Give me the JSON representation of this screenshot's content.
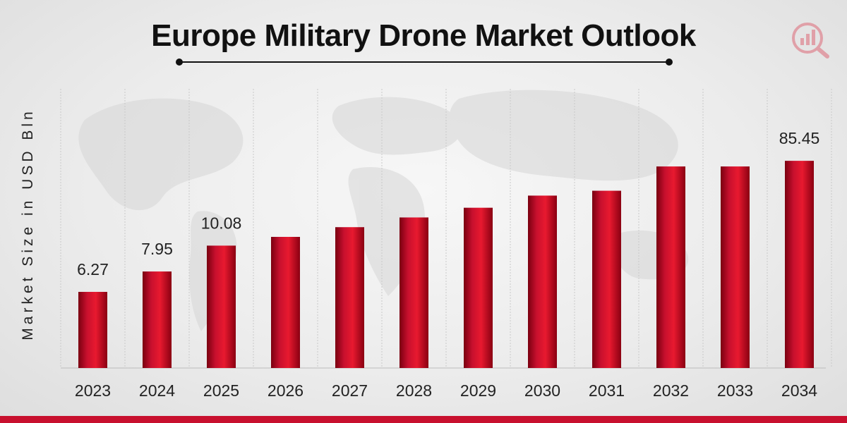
{
  "chart_data": {
    "type": "bar",
    "title": "Europe Military Drone Market Outlook",
    "ylabel": "Market Size in USD Bln",
    "xlabel": "",
    "categories": [
      "2023",
      "2024",
      "2025",
      "2026",
      "2027",
      "2028",
      "2029",
      "2030",
      "2031",
      "2032",
      "2033",
      "2034"
    ],
    "values": [
      6.27,
      7.95,
      10.08,
      10.8,
      11.6,
      12.4,
      13.2,
      14.2,
      14.6,
      16.6,
      16.6,
      85.45
    ],
    "data_labels": [
      "6.27",
      "7.95",
      "10.08",
      "",
      "",
      "",
      "",
      "",
      "",
      "",
      "",
      "85.45"
    ],
    "axis_break_note": "last bar is on a compressed scale in the original",
    "ylim": [
      0,
      18
    ],
    "grid": "vertical",
    "bar_color": "#c8102e"
  }
}
